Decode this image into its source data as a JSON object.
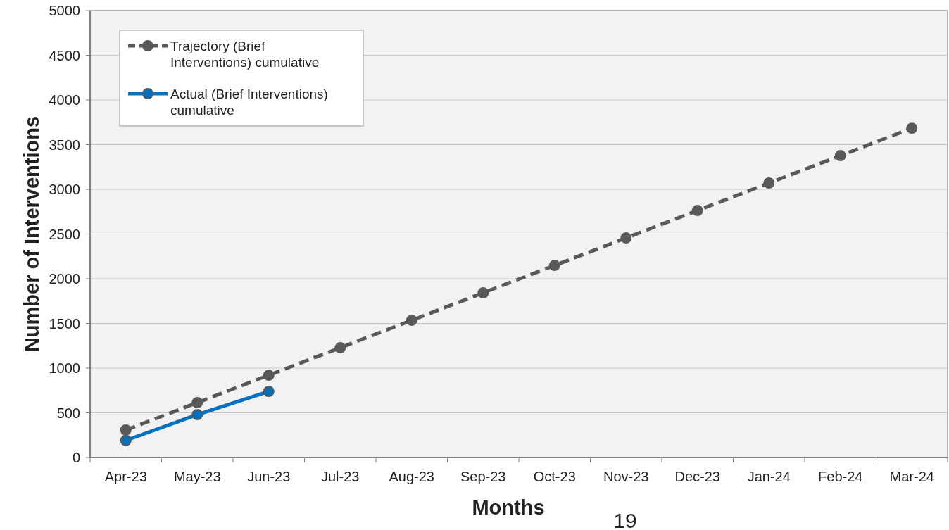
{
  "chart_data": {
    "type": "line",
    "xlabel": "Months",
    "ylabel": "Number of Interventions",
    "categories": [
      "Apr-23",
      "May-23",
      "Jun-23",
      "Jul-23",
      "Aug-23",
      "Sep-23",
      "Oct-23",
      "Nov-23",
      "Dec-23",
      "Jan-24",
      "Feb-24",
      "Mar-24"
    ],
    "series": [
      {
        "name": "Trajectory (Brief Interventions) cumulative",
        "color": "#595959",
        "line_style": "dashed",
        "values": [
          307,
          614,
          921,
          1228,
          1535,
          1842,
          2149,
          2456,
          2763,
          3070,
          3377,
          3684
        ]
      },
      {
        "name": "Actual (Brief Interventions) cumulative",
        "color": "#0070c0",
        "line_style": "solid",
        "values": [
          191,
          480,
          740,
          null,
          null,
          null,
          null,
          null,
          null,
          null,
          null,
          null
        ]
      }
    ],
    "ylim": [
      0,
      5000
    ],
    "yticks": [
      0,
      500,
      1000,
      1500,
      2000,
      2500,
      3000,
      3500,
      4000,
      4500,
      5000
    ],
    "grid": "y",
    "legend": "top left",
    "marker": "circle",
    "annotations": [
      "19"
    ]
  }
}
